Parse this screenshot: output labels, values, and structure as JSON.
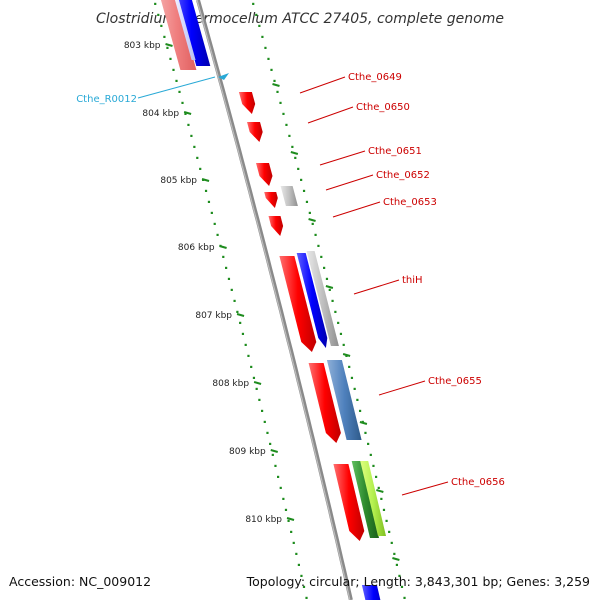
{
  "title": "Clostridium thermocellum ATCC 27405, complete genome",
  "footer": {
    "accession": "Accession: NC_009012",
    "summary": "Topology: circular; Length: 3,843,301 bp; Genes: 3,259"
  },
  "ticks": [
    "803 kbp",
    "804 kbp",
    "805 kbp",
    "806 kbp",
    "807 kbp",
    "808 kbp",
    "809 kbp",
    "810 kbp"
  ],
  "gene_labels": [
    "Cthe_0649",
    "Cthe_0650",
    "Cthe_0651",
    "Cthe_0652",
    "Cthe_0653",
    "thiH",
    "Cthe_0655",
    "Cthe_0656"
  ],
  "rna_labels": [
    "Cthe_R0012"
  ],
  "colors": {
    "cds": "#e60000",
    "gene": "#0000e6",
    "misc": "#b3b3b3",
    "steel": "#4f81bd",
    "green": "#2e8b2e",
    "lime": "#a6e64d",
    "rna": "#29a9d6",
    "backbone": "#7f7f7f",
    "dots": "#1e8c1e"
  }
}
